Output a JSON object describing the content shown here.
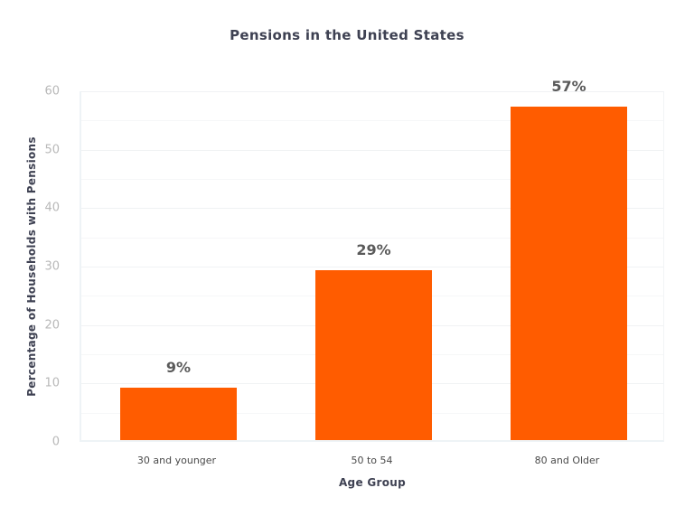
{
  "chart_data": {
    "type": "bar",
    "title": "Pensions in the United States",
    "xlabel": "Age Group",
    "ylabel": "Percentage of Households with Pensions",
    "categories": [
      "30 and younger",
      "50 to 54",
      "80 and Older"
    ],
    "values": [
      9,
      29,
      57
    ],
    "data_labels": [
      "9%",
      "29%",
      "57%"
    ],
    "ylim": [
      0,
      60
    ],
    "yticks": [
      0,
      10,
      20,
      30,
      40,
      50,
      60
    ],
    "grid": true,
    "legend": null,
    "bar_color": "#ff5c00"
  },
  "title": "Pensions in the United States",
  "axes": {
    "xlabel": "Age Group",
    "ylabel": "Percentage of Households with Pensions",
    "yticks": [
      "0",
      "10",
      "20",
      "30",
      "40",
      "50",
      "60"
    ]
  },
  "bars": [
    {
      "category": "30 and younger",
      "label": "9%"
    },
    {
      "category": "50 to 54",
      "label": "29%"
    },
    {
      "category": "80 and Older",
      "label": "57%"
    }
  ]
}
